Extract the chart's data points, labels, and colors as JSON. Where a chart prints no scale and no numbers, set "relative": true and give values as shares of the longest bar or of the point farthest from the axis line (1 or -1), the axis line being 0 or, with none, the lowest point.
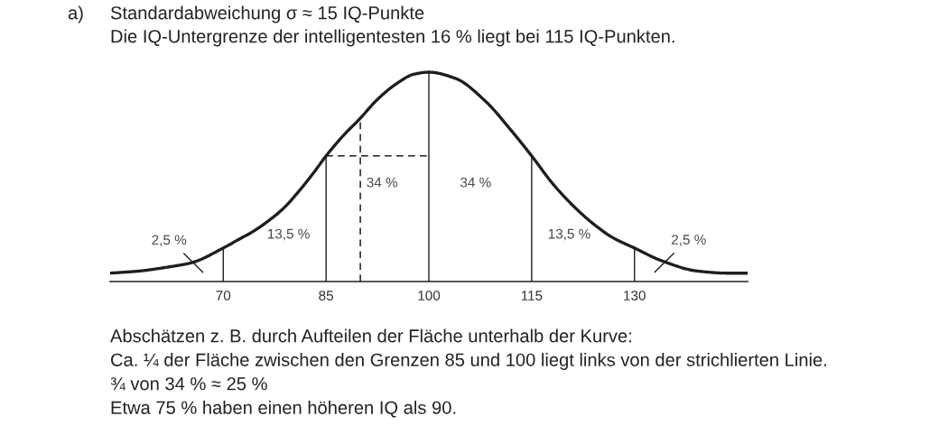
{
  "chart_data": {
    "type": "line",
    "relative": true,
    "title": "Standardabweichung σ ≈ 15 IQ-Punkte",
    "subtitle": "Die IQ-Untergrenze der intelligentesten 16 % liegt bei 115 IQ-Punkten.",
    "xlim": [
      53.5,
      146.5
    ],
    "xticks": [
      70,
      85,
      100,
      115,
      130
    ],
    "series": [
      {
        "color": "#1e1e1e",
        "line_style": "solid",
        "x": [
          53.5,
          57.7,
          62.1,
          65.4,
          70,
          72.2,
          74.4,
          76.6,
          78.8,
          81.0,
          83.2,
          85,
          87.6,
          90,
          92.5,
          95.5,
          97.8,
          100,
          103.9,
          108.3,
          111.8,
          115,
          118.0,
          120.2,
          122.4,
          124.6,
          126.8,
          130,
          133.9,
          139.2,
          143.6,
          146.5
        ],
        "values": [
          0.04,
          0.05,
          0.07,
          0.09,
          0.16,
          0.2,
          0.24,
          0.29,
          0.35,
          0.43,
          0.52,
          0.6,
          0.7,
          0.78,
          0.87,
          0.95,
          0.99,
          1,
          0.97,
          0.86,
          0.73,
          0.6,
          0.47,
          0.39,
          0.32,
          0.26,
          0.21,
          0.16,
          0.1,
          0.05,
          0.04,
          0.04
        ]
      },
      {
        "color": "#1e1e1e",
        "line_style": "dashed",
        "x": [
          85,
          100
        ],
        "values": [
          0.6,
          0.6
        ]
      }
    ],
    "ref_lines": [
      {
        "axis": "x",
        "value": 70,
        "color": "#1e1e1e"
      },
      {
        "axis": "x",
        "value": 85,
        "color": "#1e1e1e"
      },
      {
        "axis": "x",
        "value": 100,
        "color": "#1e1e1e"
      },
      {
        "axis": "x",
        "value": 115,
        "color": "#1e1e1e"
      },
      {
        "axis": "x",
        "value": 130,
        "color": "#1e1e1e"
      },
      {
        "axis": "x",
        "value": 90,
        "color": "#1e1e1e",
        "line_style": "dashed"
      }
    ],
    "annotations": [
      "2,5 %",
      "13,5 %",
      "34 %",
      "34 %",
      "13,5 %",
      "2,5 %",
      "a)",
      "Abschätzen z. B. durch Aufteilen der Fläche unterhalb der Kurve:",
      "Ca. ¼ der Fläche zwischen den Grenzen 85 und 100 liegt links von der strichlierten Linie.",
      "¾ von 34 % ≈ 25 %",
      "Etwa 75 % haben einen höheren IQ als 90."
    ]
  }
}
